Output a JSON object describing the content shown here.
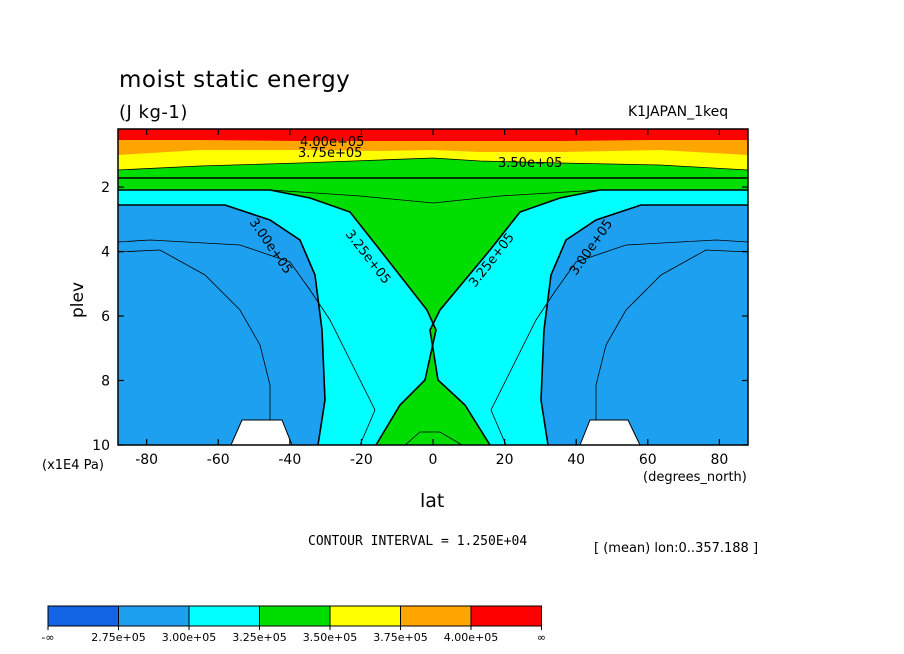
{
  "chart_data": {
    "type": "contour",
    "title": "moist static energy",
    "units": "(J kg-1)",
    "run_label": "K1JAPAN_1keq",
    "xlabel": "lat",
    "xunits": "(degrees_north)",
    "ylabel": "plev",
    "yunits": "(x1E4 Pa)",
    "xlim": [
      -88,
      88
    ],
    "ylim": [
      10,
      0.2
    ],
    "xticks": [
      "-80",
      "-60",
      "-40",
      "-20",
      "0",
      "20",
      "40",
      "60",
      "80"
    ],
    "yticks": [
      "2",
      "4",
      "6",
      "8",
      "10"
    ],
    "contour_interval_text": "CONTOUR INTERVAL = 1.250E+04",
    "mean_info": "[ (mean) lon:0..357.188 ]",
    "contour_labels": [
      "4.00e+05",
      "3.75e+05",
      "3.50e+05",
      "3.25e+05",
      "3.25e+05",
      "3.00e+05",
      "3.00e+05"
    ],
    "colorbar": {
      "colors": [
        "#1464e6",
        "#1ea0f0",
        "#00ffff",
        "#00dd00",
        "#ffff00",
        "#ffa500",
        "#ff0000"
      ],
      "labels": [
        "-∞",
        "2.75e+05",
        "3.00e+05",
        "3.25e+05",
        "3.50e+05",
        "3.75e+05",
        "4.00e+05",
        "∞"
      ]
    }
  }
}
